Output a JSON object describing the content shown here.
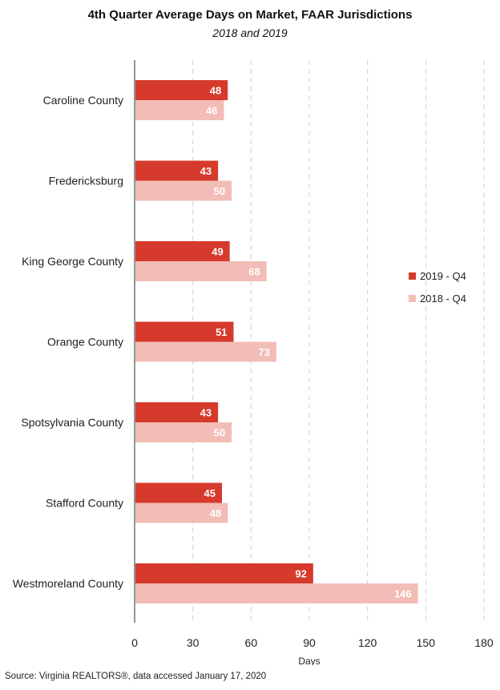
{
  "title": "4th Quarter Average Days on Market, FAAR Jurisdictions",
  "subtitle": "2018 and 2019",
  "source": "Source: Virginia REALTORS®, data accessed January 17, 2020",
  "chart_data": {
    "type": "bar",
    "orientation": "horizontal",
    "categories": [
      "Caroline County",
      "Fredericksburg",
      "King George County",
      "Orange County",
      "Spotsylvania County",
      "Stafford County",
      "Westmoreland County"
    ],
    "series": [
      {
        "name": "2019 - Q4",
        "color": "#D63A2C",
        "values": [
          48,
          43,
          49,
          51,
          43,
          45,
          92
        ]
      },
      {
        "name": "2018 - Q4",
        "color": "#F2BDB6",
        "values": [
          46,
          50,
          68,
          73,
          50,
          48,
          146
        ]
      }
    ],
    "xlabel": "Days",
    "ylabel": "",
    "xlim": [
      0,
      180
    ],
    "xticks": [
      0,
      30,
      60,
      90,
      120,
      150,
      180
    ],
    "grid": "vertical-dashed",
    "legend_position": "right",
    "data_labels": true
  }
}
